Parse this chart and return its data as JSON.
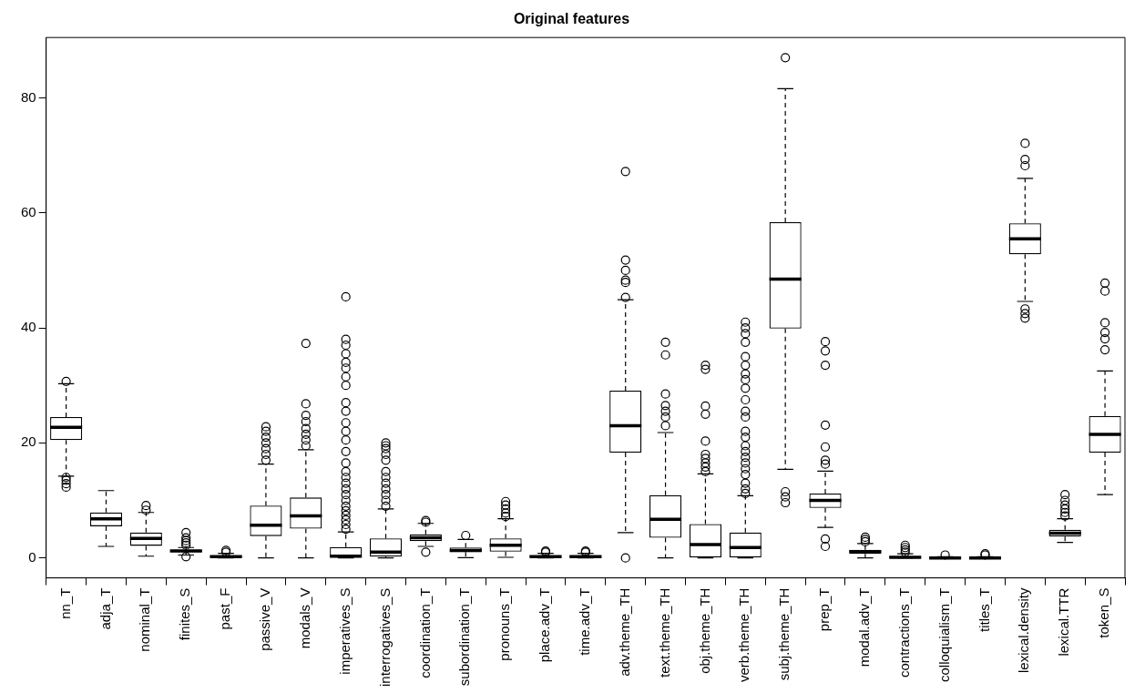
{
  "chart_data": {
    "type": "box",
    "title": "Original features",
    "categories": [
      "nn_T",
      "adja_T",
      "nominal_T",
      "finites_S",
      "past_F",
      "passive_V",
      "modals_V",
      "imperatives_S",
      "interrogatives_S",
      "coordination_T",
      "subordination_T",
      "pronouns_T",
      "place.adv_T",
      "time.adv_T",
      "adv.theme_TH",
      "text.theme_TH",
      "obj.theme_TH",
      "verb.theme_TH",
      "subj.theme_TH",
      "prep_T",
      "modal.adv_T",
      "contractions_T",
      "colloquialism_T",
      "titles_T",
      "lexical.density",
      "lexical.TTR",
      "token_S"
    ],
    "boxes": [
      {
        "low": 14.2,
        "q1": 20.5,
        "median": 22.7,
        "q3": 24.5,
        "high": 30.3,
        "outliers": [
          30.7,
          14,
          13.5,
          12.9,
          12.3
        ]
      },
      {
        "low": 2,
        "q1": 5.5,
        "median": 6.8,
        "q3": 7.9,
        "high": 11.7
      },
      {
        "low": 0.3,
        "q1": 2.1,
        "median": 3.4,
        "q3": 4.4,
        "high": 7.9,
        "outliers": [
          8.3,
          9.1
        ]
      },
      {
        "low": 0.5,
        "q1": 1,
        "median": 1.2,
        "q3": 1.4,
        "high": 1.8,
        "outliers": [
          2.2,
          2.6,
          3,
          3.5,
          4.4,
          0.2
        ]
      },
      {
        "low": 0,
        "q1": 0.1,
        "median": 0.2,
        "q3": 0.4,
        "high": 0.8,
        "outliers": [
          1,
          1.3
        ]
      },
      {
        "low": 0,
        "q1": 3.8,
        "median": 5.7,
        "q3": 9.1,
        "high": 16.3,
        "outliers": [
          17,
          18,
          19,
          20,
          21,
          22,
          22.8
        ]
      },
      {
        "low": 0,
        "q1": 5.1,
        "median": 7.3,
        "q3": 10.5,
        "high": 18.8,
        "outliers": [
          19.5,
          20.5,
          21.5,
          22.5,
          23.7,
          24.8,
          26.8,
          37.3
        ]
      },
      {
        "low": 0,
        "q1": 0,
        "median": 0.3,
        "q3": 1.9,
        "high": 4.5,
        "outliers": [
          5,
          5.8,
          6.6,
          7.4,
          8.2,
          9,
          10,
          11,
          12,
          13,
          14,
          15,
          16.5,
          18.5,
          20.5,
          22,
          23.5,
          25.5,
          27,
          30,
          31.5,
          33,
          34,
          35.5,
          37,
          38,
          45.4
        ]
      },
      {
        "low": 0,
        "q1": 0.2,
        "median": 1,
        "q3": 3.4,
        "high": 8.5,
        "outliers": [
          9,
          10,
          11,
          12,
          13,
          14,
          15,
          17,
          18,
          19,
          19.5,
          20
        ]
      },
      {
        "low": 2,
        "q1": 2.9,
        "median": 3.5,
        "q3": 4.1,
        "high": 6,
        "outliers": [
          6.2,
          6.5,
          1
        ]
      },
      {
        "low": 0.05,
        "q1": 1,
        "median": 1.3,
        "q3": 1.8,
        "high": 3.2,
        "outliers": [
          3.9
        ]
      },
      {
        "low": 0.1,
        "q1": 1.1,
        "median": 2.2,
        "q3": 3.4,
        "high": 6.8,
        "outliers": [
          7.2,
          7.8,
          8.5,
          9.2,
          9.8
        ]
      },
      {
        "low": 0,
        "q1": 0.1,
        "median": 0.2,
        "q3": 0.4,
        "high": 0.8,
        "outliers": [
          1,
          1.2
        ]
      },
      {
        "low": 0,
        "q1": 0.1,
        "median": 0.2,
        "q3": 0.4,
        "high": 0.8,
        "outliers": [
          1,
          1.2
        ]
      },
      {
        "low": 4.4,
        "q1": 18.3,
        "median": 23,
        "q3": 29.1,
        "high": 44.9,
        "outliers": [
          45.3,
          47.9,
          48.3,
          50,
          51.8,
          67.2,
          0
        ]
      },
      {
        "low": 0,
        "q1": 3.5,
        "median": 6.7,
        "q3": 10.9,
        "high": 21.8,
        "outliers": [
          23,
          24.5,
          25.5,
          26.5,
          28.5,
          35.3,
          37.5
        ]
      },
      {
        "low": 0,
        "q1": 0,
        "median": 2.3,
        "q3": 5.9,
        "high": 14.6,
        "outliers": [
          15,
          15.8,
          16.5,
          17.3,
          18,
          20.3,
          25,
          26.4,
          32.8,
          33.5
        ]
      },
      {
        "low": 0,
        "q1": 0,
        "median": 1.8,
        "q3": 4.4,
        "high": 10.8,
        "outliers": [
          11.2,
          12,
          13,
          14.5,
          15.5,
          16.5,
          17.5,
          18.5,
          19.5,
          21,
          22,
          24.5,
          25.5,
          27.5,
          29.5,
          31,
          32,
          33.5,
          35,
          37.5,
          39,
          40,
          41
        ]
      },
      {
        "low": 15.4,
        "q1": 39.9,
        "median": 48.5,
        "q3": 58.4,
        "high": 81.6,
        "outliers": [
          87,
          11.5,
          10.6,
          9.6
        ]
      },
      {
        "low": 5.3,
        "q1": 8.7,
        "median": 10,
        "q3": 11.2,
        "high": 15.1,
        "outliers": [
          16.3,
          17,
          19.3,
          23.1,
          33.5,
          36,
          37.6,
          3.3,
          2
        ]
      },
      {
        "low": 0,
        "q1": 0.7,
        "median": 1.1,
        "q3": 1.4,
        "high": 2.5,
        "outliers": [
          2.8,
          3.2,
          3.6
        ]
      },
      {
        "low": 0,
        "q1": 0,
        "median": 0.1,
        "q3": 0.3,
        "high": 0.7,
        "outliers": [
          1,
          1.4,
          1.8,
          2.2
        ]
      },
      {
        "low": 0,
        "q1": 0,
        "median": 0,
        "q3": 0.1,
        "high": 0.2,
        "outliers": [
          0.5
        ]
      },
      {
        "low": 0,
        "q1": 0,
        "median": 0,
        "q3": 0.1,
        "high": 0.2,
        "outliers": [
          0.5,
          0.7
        ]
      },
      {
        "low": 44.6,
        "q1": 52.8,
        "median": 55.5,
        "q3": 58.2,
        "high": 66,
        "outliers": [
          72.1,
          69.3,
          68.2,
          43.3,
          42.5,
          41.7
        ]
      },
      {
        "low": 2.7,
        "q1": 3.7,
        "median": 4.3,
        "q3": 4.9,
        "high": 6.8,
        "outliers": [
          7.3,
          7.9,
          8.5,
          9.2,
          10,
          11
        ]
      },
      {
        "low": 11,
        "q1": 18.3,
        "median": 21.5,
        "q3": 24.7,
        "high": 32.5,
        "outliers": [
          36.2,
          38.1,
          39.2,
          40.9,
          46.4,
          47.8
        ]
      }
    ],
    "ylim": [
      -3.48,
      90.5
    ],
    "yticks": [
      0,
      20,
      40,
      60,
      80
    ],
    "grid": false,
    "legend": false
  }
}
